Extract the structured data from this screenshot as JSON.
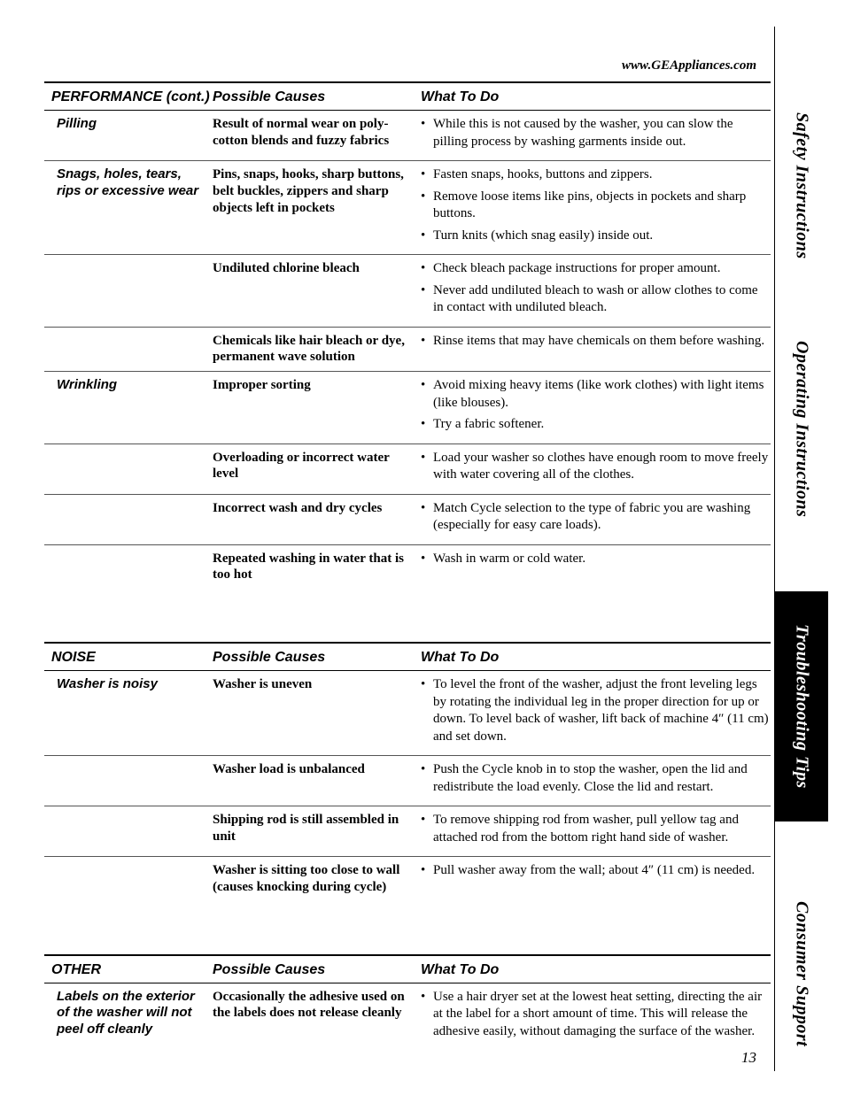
{
  "url": "www.GEAppliances.com",
  "page_number": "13",
  "sidebar": {
    "safety": "Safety Instructions",
    "ops": "Operating Instructions",
    "trouble": "Troubleshooting Tips",
    "support": "Consumer Support"
  },
  "columns": {
    "causes": "Possible Causes",
    "todo": "What To Do"
  },
  "sections": [
    {
      "title": "PERFORMANCE (cont.)",
      "groups": [
        {
          "problem": "Pilling",
          "rows": [
            {
              "cause": "Result of normal wear on poly-cotton blends and fuzzy fabrics",
              "actions": [
                "While this is not caused by the washer, you can slow the pilling process by washing garments inside out."
              ]
            }
          ]
        },
        {
          "problem": "Snags, holes, tears, rips or excessive wear",
          "rows": [
            {
              "cause": "Pins, snaps, hooks, sharp buttons, belt buckles, zippers and sharp objects left in pockets",
              "actions": [
                "Fasten snaps, hooks, buttons and zippers.",
                "Remove loose items like pins, objects in pockets and sharp buttons.",
                "Turn knits (which snag easily) inside out."
              ]
            },
            {
              "cause": "Undiluted chlorine bleach",
              "actions": [
                "Check bleach package instructions for proper amount.",
                "Never add undiluted bleach to wash or allow clothes to come in contact with undiluted bleach."
              ]
            },
            {
              "cause": "Chemicals like hair bleach or dye, permanent wave solution",
              "actions": [
                "Rinse items that may have chemicals on them before washing."
              ]
            }
          ]
        },
        {
          "problem": "Wrinkling",
          "rows": [
            {
              "cause": "Improper sorting",
              "actions": [
                "Avoid mixing heavy items (like work clothes) with light items (like blouses).",
                "Try a fabric softener."
              ]
            },
            {
              "cause": "Overloading or incorrect water level",
              "actions": [
                "Load your washer so clothes have enough room to move freely with water covering all of the clothes."
              ]
            },
            {
              "cause": "Incorrect wash and dry cycles",
              "actions": [
                "Match Cycle selection to the type of fabric you are washing (especially for easy care loads)."
              ]
            },
            {
              "cause": "Repeated washing in water that is too hot",
              "actions": [
                "Wash in warm or cold water."
              ]
            }
          ]
        }
      ]
    },
    {
      "title": "NOISE",
      "groups": [
        {
          "problem": "Washer is noisy",
          "rows": [
            {
              "cause": "Washer is uneven",
              "actions": [
                "To level the front of the washer, adjust the front leveling legs by rotating the individual leg in the proper direction for up or down. To level back of washer, lift back of machine 4″ (11 cm) and set down."
              ]
            },
            {
              "cause": "Washer load is unbalanced",
              "actions": [
                "Push the Cycle knob in to stop the washer, open the lid and redistribute the load evenly. Close the lid and restart."
              ]
            },
            {
              "cause": "Shipping rod is still assembled in unit",
              "actions": [
                "To remove shipping rod from washer, pull yellow tag and attached rod from the bottom right hand side of washer."
              ]
            },
            {
              "cause": "Washer is sitting too close to wall (causes knocking during cycle)",
              "actions": [
                "Pull washer away from the wall; about 4″ (11 cm) is needed."
              ]
            }
          ]
        }
      ]
    },
    {
      "title": "OTHER",
      "groups": [
        {
          "problem": "Labels on the exterior of the washer will not peel off cleanly",
          "rows": [
            {
              "cause": "Occasionally the adhesive used on the labels does not release cleanly",
              "actions": [
                "Use a hair dryer set at the lowest heat setting, directing the air at the label for a short amount of time. This will release the adhesive easily, without damaging the surface of the washer."
              ]
            }
          ]
        }
      ]
    }
  ]
}
